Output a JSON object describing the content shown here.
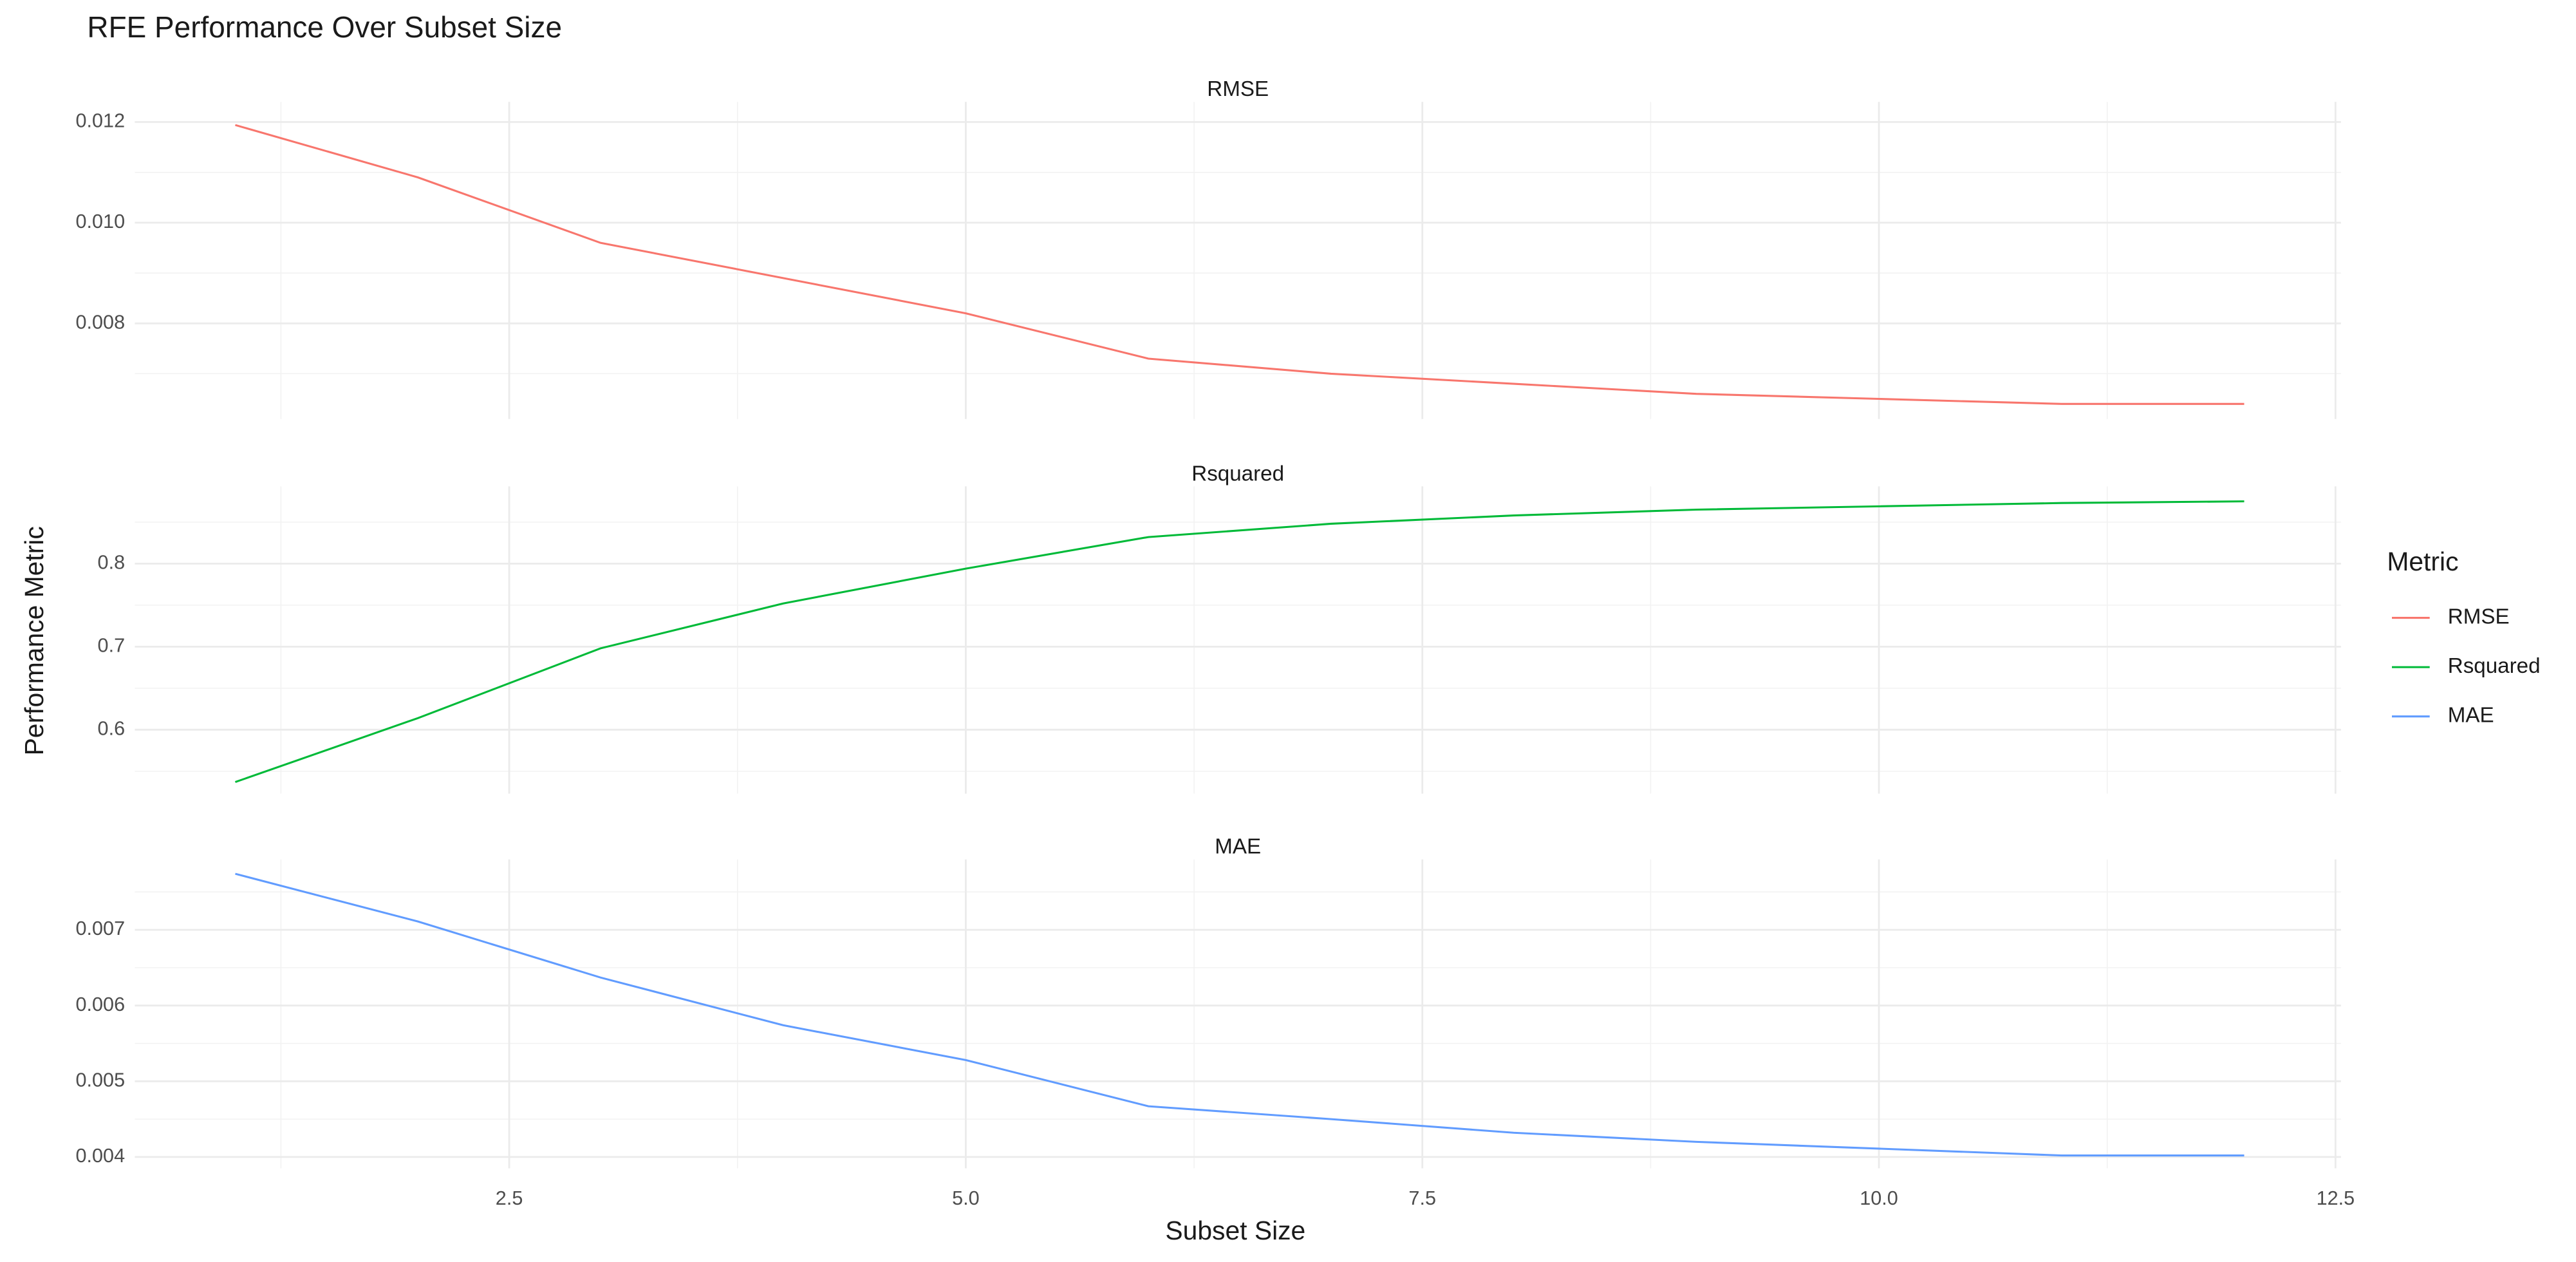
{
  "chart_data": {
    "type": "line",
    "title": "RFE Performance Over Subset Size",
    "x_label": "Subset Size",
    "y_label": "Performance Metric",
    "legend_title": "Metric",
    "legend_position": "right",
    "grid": true,
    "x": [
      1,
      2,
      3,
      4,
      5,
      6,
      7,
      8,
      9,
      10,
      11,
      12
    ],
    "xlim": [
      0.45,
      12.53
    ],
    "xticks": [
      2.5,
      {
        "value": 5,
        "label": "5.0"
      },
      7.5,
      {
        "value": 10,
        "label": "10.0"
      },
      12.5
    ],
    "series": [
      {
        "name": "RMSE",
        "color": "#F8766D",
        "values": [
          0.01194,
          0.0109,
          0.0096,
          0.0089,
          0.0082,
          0.0073,
          0.007,
          0.0068,
          0.0066,
          0.0065,
          0.0064,
          0.0064
        ],
        "ylim": [
          0.0061,
          0.0124
        ],
        "yticks": [
          0.008,
          {
            "value": 0.01,
            "label": "0.010"
          },
          0.012
        ]
      },
      {
        "name": "Rsquared",
        "color": "#00BA38",
        "values": [
          0.537,
          0.614,
          0.698,
          0.752,
          0.794,
          0.832,
          0.848,
          0.858,
          0.865,
          0.869,
          0.873,
          0.875
        ],
        "ylim": [
          0.523,
          0.893
        ],
        "yticks": [
          0.6,
          0.7,
          0.8
        ]
      },
      {
        "name": "MAE",
        "color": "#619CFF",
        "values": [
          0.00774,
          0.00711,
          0.00637,
          0.00574,
          0.00528,
          0.00467,
          0.0045,
          0.00432,
          0.0042,
          0.00411,
          0.00402,
          0.00402
        ],
        "ylim": [
          0.00385,
          0.00793
        ],
        "yticks": [
          0.004,
          0.005,
          0.006,
          0.007
        ]
      }
    ]
  }
}
